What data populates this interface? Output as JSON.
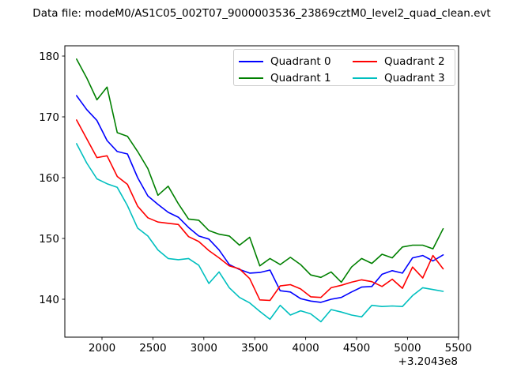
{
  "title": "Data file: modeM0/AS1C05_002T07_9000003536_23869cztM0_level2_quad_clean.evt",
  "legend": {
    "position": "upper right",
    "items": [
      {
        "label": "Quadrant 0",
        "color": "#0000ff"
      },
      {
        "label": "Quadrant 1",
        "color": "#008000"
      },
      {
        "label": "Quadrant 2",
        "color": "#ff0000"
      },
      {
        "label": "Quadrant 3",
        "color": "#00bfbf"
      }
    ]
  },
  "x_axis": {
    "ticks": [
      2000,
      2500,
      3000,
      3500,
      4000,
      4500,
      5000,
      5500
    ],
    "offset_label": "+3.2043e8",
    "range": [
      1635,
      5510
    ]
  },
  "y_axis": {
    "ticks": [
      140,
      150,
      160,
      170,
      180
    ],
    "range": [
      133.8,
      181.7
    ]
  },
  "frame_color": "#000000",
  "chart_data": {
    "type": "line",
    "title": "Data file: modeM0/AS1C05_002T07_9000003536_23869cztM0_level2_quad_clean.evt",
    "xlabel": "",
    "ylabel": "",
    "x_offset": "+3.2043e8",
    "xlim": [
      1635,
      5510
    ],
    "ylim": [
      133.8,
      181.7
    ],
    "grid": false,
    "legend_position": "upper right",
    "x": [
      1750,
      1850,
      1950,
      2050,
      2150,
      2250,
      2350,
      2450,
      2550,
      2650,
      2750,
      2850,
      2950,
      3050,
      3150,
      3250,
      3350,
      3450,
      3550,
      3650,
      3750,
      3850,
      3950,
      4050,
      4150,
      4250,
      4350,
      4450,
      4550,
      4650,
      4750,
      4850,
      4950,
      5050,
      5150,
      5250,
      5350
    ],
    "series": [
      {
        "name": "Quadrant 0",
        "color": "#0000ff",
        "values": [
          173.5,
          171.2,
          169.4,
          166.1,
          164.3,
          163.9,
          160.0,
          157.0,
          155.6,
          154.3,
          153.5,
          151.8,
          150.4,
          149.9,
          148.1,
          145.7,
          144.9,
          144.3,
          144.4,
          144.8,
          141.4,
          141.2,
          140.1,
          139.7,
          139.5,
          140.0,
          140.3,
          141.2,
          142.0,
          142.1,
          144.1,
          144.7,
          144.3,
          146.8,
          147.2,
          146.3,
          147.3
        ]
      },
      {
        "name": "Quadrant 1",
        "color": "#008000",
        "values": [
          179.5,
          176.4,
          172.8,
          174.9,
          167.4,
          166.8,
          164.3,
          161.5,
          157.1,
          158.6,
          155.7,
          153.2,
          153.0,
          151.3,
          150.7,
          150.4,
          148.9,
          150.2,
          145.5,
          146.7,
          145.7,
          146.9,
          145.7,
          144.0,
          143.6,
          144.5,
          142.8,
          145.3,
          146.7,
          145.9,
          147.4,
          146.8,
          148.6,
          148.9,
          148.9,
          148.3,
          151.6
        ]
      },
      {
        "name": "Quadrant 2",
        "color": "#ff0000",
        "values": [
          169.5,
          166.4,
          163.3,
          163.6,
          160.2,
          158.9,
          155.3,
          153.4,
          152.7,
          152.5,
          152.3,
          150.3,
          149.5,
          148.0,
          146.8,
          145.5,
          145.0,
          143.4,
          139.9,
          139.8,
          142.2,
          142.4,
          141.7,
          140.4,
          140.3,
          141.9,
          142.3,
          142.8,
          143.2,
          142.9,
          142.1,
          143.3,
          141.8,
          145.3,
          143.5,
          147.2,
          145.0
        ]
      },
      {
        "name": "Quadrant 3",
        "color": "#00bfbf",
        "values": [
          165.6,
          162.4,
          159.8,
          159.0,
          158.4,
          155.4,
          151.7,
          150.4,
          148.1,
          146.7,
          146.5,
          146.7,
          145.6,
          142.6,
          144.5,
          141.9,
          140.3,
          139.4,
          138.0,
          136.7,
          139.0,
          137.4,
          138.1,
          137.6,
          136.3,
          138.3,
          137.9,
          137.4,
          137.1,
          139.0,
          138.8,
          138.9,
          138.8,
          140.6,
          141.9,
          141.6,
          141.3
        ]
      }
    ]
  }
}
